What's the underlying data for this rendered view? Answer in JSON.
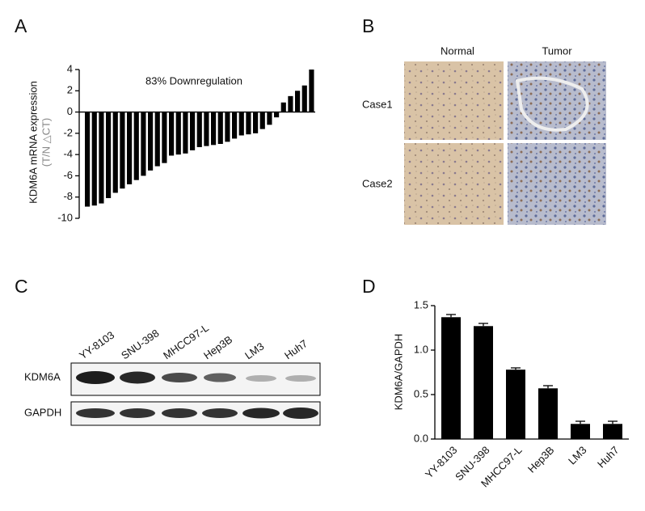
{
  "panel_labels": [
    "A",
    "B",
    "C",
    "D"
  ],
  "chart_data": [
    {
      "type": "bar",
      "y_label": "KDM6A mRNA expression",
      "y_label_sub": "(T/N △CT)",
      "annotation": "83% Downregulation",
      "values": [
        -8.9,
        -8.8,
        -8.6,
        -8.1,
        -7.6,
        -7.2,
        -6.8,
        -6.4,
        -6.0,
        -5.5,
        -5.1,
        -4.8,
        -4.1,
        -4.0,
        -3.9,
        -3.6,
        -3.3,
        -3.2,
        -3.1,
        -3.0,
        -2.8,
        -2.5,
        -2.2,
        -2.1,
        -2.0,
        -1.6,
        -1.2,
        -0.5,
        0.9,
        1.5,
        2.0,
        2.5,
        4.0
      ],
      "color": "#000000",
      "ylim": [
        -10,
        4
      ],
      "yticks": [
        -10,
        -8,
        -6,
        -4,
        -2,
        0,
        2,
        4
      ]
    },
    {
      "type": "bar",
      "y_label": "KDM6A/GAPDH",
      "categories": [
        "YY-8103",
        "SNU-398",
        "MHCC97-L",
        "Hep3B",
        "LM3",
        "Huh7"
      ],
      "values": [
        1.37,
        1.27,
        0.78,
        0.57,
        0.17,
        0.17
      ],
      "errors": [
        0.03,
        0.03,
        0.02,
        0.03,
        0.03,
        0.03
      ],
      "color": "#000000",
      "ylim": [
        0,
        1.5
      ],
      "yticks": [
        {
          "value": 0,
          "label": "0.0"
        },
        0.5,
        {
          "value": 1,
          "label": "1.0"
        },
        1.5
      ]
    }
  ],
  "ihc": {
    "columns": [
      "Normal",
      "Tumor"
    ],
    "rows": [
      "Case1",
      "Case2"
    ]
  },
  "blot": {
    "lanes": [
      "YY-8103",
      "SNU-398",
      "MHCC97-L",
      "Hep3B",
      "LM3",
      "Huh7"
    ],
    "rows": [
      "KDM6A",
      "GAPDH"
    ]
  }
}
